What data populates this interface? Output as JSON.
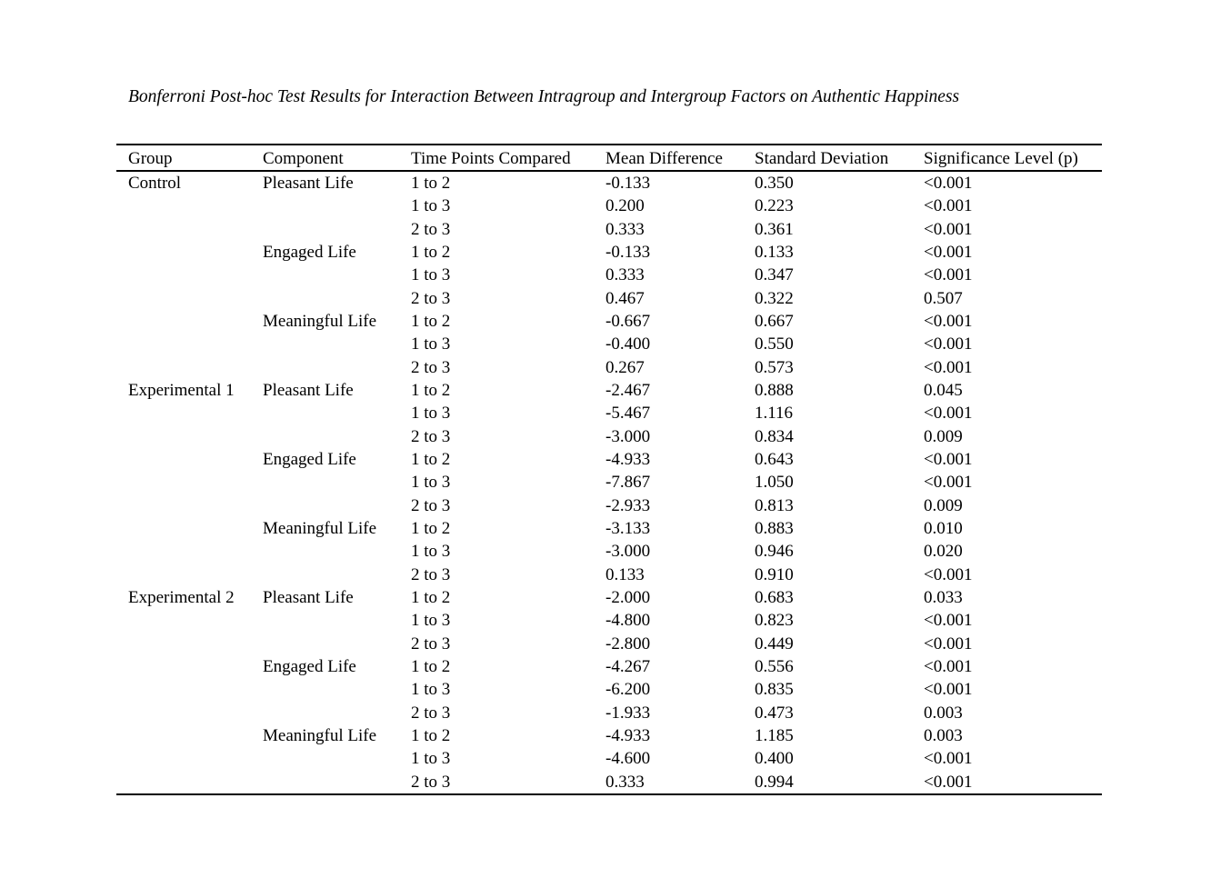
{
  "page": {
    "title": "Bonferroni Post-hoc Test Results for Interaction Between Intragroup and Intergroup Factors on Authentic Happiness"
  },
  "table": {
    "columns": [
      "Group",
      "Component",
      "Time Points Compared",
      "Mean Difference",
      "Standard Deviation",
      "Significance Level (p)"
    ],
    "rows": [
      [
        "Control",
        "Pleasant Life",
        "1 to 2",
        "-0.133",
        "0.350",
        "<0.001"
      ],
      [
        "",
        "",
        "1 to 3",
        "0.200",
        "0.223",
        "<0.001"
      ],
      [
        "",
        "",
        "2 to 3",
        "0.333",
        "0.361",
        "<0.001"
      ],
      [
        "",
        "Engaged Life",
        "1 to 2",
        "-0.133",
        "0.133",
        "<0.001"
      ],
      [
        "",
        "",
        "1 to 3",
        "0.333",
        "0.347",
        "<0.001"
      ],
      [
        "",
        "",
        "2 to 3",
        "0.467",
        "0.322",
        "0.507"
      ],
      [
        "",
        "Meaningful Life",
        "1 to 2",
        "-0.667",
        "0.667",
        "<0.001"
      ],
      [
        "",
        "",
        "1 to 3",
        "-0.400",
        "0.550",
        "<0.001"
      ],
      [
        "",
        "",
        "2 to 3",
        "0.267",
        "0.573",
        "<0.001"
      ],
      [
        "Experimental 1",
        "Pleasant Life",
        "1 to 2",
        "-2.467",
        "0.888",
        "0.045"
      ],
      [
        "",
        "",
        "1 to 3",
        "-5.467",
        "1.116",
        "<0.001"
      ],
      [
        "",
        "",
        "2 to 3",
        "-3.000",
        "0.834",
        "0.009"
      ],
      [
        "",
        "Engaged Life",
        "1 to 2",
        "-4.933",
        "0.643",
        "<0.001"
      ],
      [
        "",
        "",
        "1 to 3",
        "-7.867",
        "1.050",
        "<0.001"
      ],
      [
        "",
        "",
        "2 to 3",
        "-2.933",
        "0.813",
        "0.009"
      ],
      [
        "",
        "Meaningful Life",
        "1 to 2",
        "-3.133",
        "0.883",
        "0.010"
      ],
      [
        "",
        "",
        "1 to 3",
        "-3.000",
        "0.946",
        "0.020"
      ],
      [
        "",
        "",
        "2 to 3",
        "0.133",
        "0.910",
        "<0.001"
      ],
      [
        "Experimental 2",
        "Pleasant Life",
        "1 to 2",
        "-2.000",
        "0.683",
        "0.033"
      ],
      [
        "",
        "",
        "1 to 3",
        "-4.800",
        "0.823",
        "<0.001"
      ],
      [
        "",
        "",
        "2 to 3",
        "-2.800",
        "0.449",
        "<0.001"
      ],
      [
        "",
        "Engaged Life",
        "1 to 2",
        "-4.267",
        "0.556",
        "<0.001"
      ],
      [
        "",
        "",
        "1 to 3",
        "-6.200",
        "0.835",
        "<0.001"
      ],
      [
        "",
        "",
        "2 to 3",
        "-1.933",
        "0.473",
        "0.003"
      ],
      [
        "",
        "Meaningful Life",
        "1 to 2",
        "-4.933",
        "1.185",
        "0.003"
      ],
      [
        "",
        "",
        "1 to 3",
        "-4.600",
        "0.400",
        "<0.001"
      ],
      [
        "",
        "",
        "2 to 3",
        "0.333",
        "0.994",
        "<0.001"
      ]
    ]
  }
}
